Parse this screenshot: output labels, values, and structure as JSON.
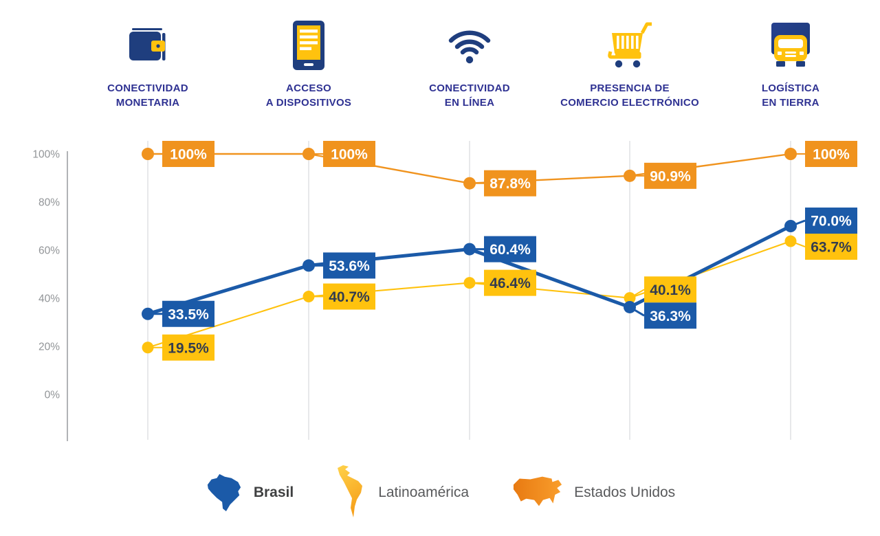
{
  "theme": {
    "blue": "#1b5aa8",
    "yellow": "#ffc20e",
    "orange": "#f0931e",
    "navy_icon": "#1f3e7e",
    "navy_label": "#2e3192",
    "axis_gray": "#b1b3b6",
    "grid_gray": "#e7e8ea",
    "tick_gray": "#919497",
    "legend_text": "#58595b",
    "legend_text_bold": "#3f4041",
    "yellow_label_text": "#333c4f"
  },
  "chart_data": {
    "type": "line",
    "title": "",
    "categories": [
      {
        "icon": "wallet-icon",
        "label": "CONECTIVIDAD MONETARIA",
        "line1": "CONECTIVIDAD",
        "line2": "MONETARIA"
      },
      {
        "icon": "device-icon",
        "label": "ACCESO A DISPOSITIVOS",
        "line1": "ACCESO",
        "line2": "A DISPOSITIVOS"
      },
      {
        "icon": "wifi-icon",
        "label": "CONECTIVIDAD EN LÍNEA",
        "line1": "CONECTIVIDAD",
        "line2": "EN LÍNEA"
      },
      {
        "icon": "cart-icon",
        "label": "PRESENCIA DE COMERCIO ELECTRÓNICO",
        "line1": "PRESENCIA DE",
        "line2": "COMERCIO ELECTRÓNICO"
      },
      {
        "icon": "truck-icon",
        "label": "LOGÍSTICA EN TIERRA",
        "line1": "LOGÍSTICA",
        "line2": "EN TIERRA"
      }
    ],
    "series": [
      {
        "name": "Brasil",
        "color": "#1b5aa8",
        "label_text": "#ffffff",
        "values": [
          33.5,
          53.6,
          60.4,
          36.3,
          70.0
        ],
        "point_labels": [
          "33.5%",
          "53.6%",
          "60.4%",
          "36.3%",
          "70.0%"
        ]
      },
      {
        "name": "Latinoamérica",
        "color": "#ffc20e",
        "label_text": "#333c4f",
        "values": [
          19.5,
          40.7,
          46.4,
          40.1,
          63.7
        ],
        "point_labels": [
          "19.5%",
          "40.7%",
          "46.4%",
          "40.1%",
          "63.7%"
        ]
      },
      {
        "name": "Estados Unidos",
        "color": "#f0931e",
        "label_text": "#ffffff",
        "values": [
          100,
          100,
          87.8,
          90.9,
          100
        ],
        "point_labels": [
          "100%",
          "100%",
          "87.8%",
          "90.9%",
          "100%"
        ]
      }
    ],
    "y_ticks": [
      {
        "label": "100%",
        "value": 100
      },
      {
        "label": "80%",
        "value": 80
      },
      {
        "label": "60%",
        "value": 60
      },
      {
        "label": "40%",
        "value": 40
      },
      {
        "label": "20%",
        "value": 20
      },
      {
        "label": "0%",
        "value": 0
      }
    ],
    "ylim": [
      0,
      100
    ],
    "grid": "vertical-category-lines",
    "legend_position": "bottom"
  },
  "legend": {
    "items": [
      {
        "label": "Brasil",
        "icon": "brazil-map-icon",
        "color": "#1b5aa8",
        "emphasis": true
      },
      {
        "label": "Latinoamérica",
        "icon": "latam-map-icon",
        "color": "#ffc20e",
        "emphasis": false
      },
      {
        "label": "Estados Unidos",
        "icon": "usa-map-icon",
        "color": "#f0931e",
        "emphasis": false
      }
    ]
  }
}
